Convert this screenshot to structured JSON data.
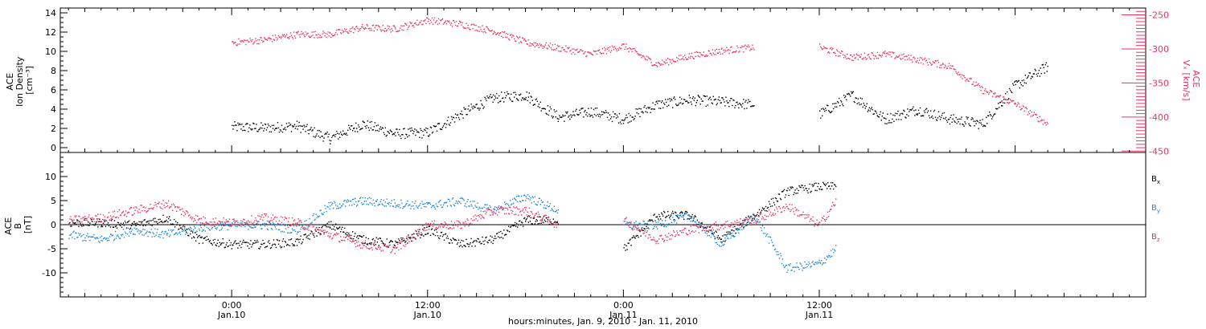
{
  "colors": {
    "black": "#000000",
    "pink": "#e8355f",
    "blue": "#1f86d8",
    "axis": "#000000"
  },
  "chart_data": [
    {
      "type": "scatter",
      "panel": "top",
      "ylabel": "ACE\nIon Density\n[cm⁻³]",
      "ylabel_lines": [
        "ACE",
        "Ion Density",
        "[cm⁻³]"
      ],
      "ylim": [
        -0.5,
        14.5
      ],
      "y_ticks": [
        0,
        2,
        4,
        6,
        8,
        10,
        12,
        14
      ],
      "y_tick_labels": [
        "0",
        "2",
        "4",
        "6",
        "8",
        "10",
        "12",
        "14"
      ],
      "y2label_lines": [
        "ACE",
        "Vₓ [km/s]"
      ],
      "y2lim": [
        -240,
        -452
      ],
      "y2_ticks": [
        -250,
        -300,
        -350,
        -400,
        -450
      ],
      "y2_tick_labels": [
        "-250",
        "-300",
        "-350",
        "-400",
        "-450"
      ],
      "series": [
        {
          "name": "Ion Density",
          "axis": "left",
          "color": "#000000",
          "x": [
            0,
            2,
            4,
            6,
            8,
            10,
            12,
            14,
            16,
            18,
            20,
            22,
            24,
            26,
            28,
            30,
            32,
            34,
            36,
            38,
            40,
            42,
            44,
            46,
            48,
            50
          ],
          "y": [
            2.2,
            2.1,
            2.3,
            1.0,
            2.5,
            1.5,
            1.6,
            3.5,
            5.2,
            5.5,
            3.2,
            3.8,
            3.0,
            4.5,
            5.0,
            4.8,
            4.5,
            null,
            3.5,
            5.5,
            3.0,
            4.0,
            3.0,
            2.5,
            6.5,
            8.5
          ]
        },
        {
          "name": "Vx",
          "axis": "right",
          "color": "#e8355f",
          "x": [
            0,
            2,
            4,
            6,
            8,
            10,
            12,
            14,
            16,
            18,
            20,
            22,
            24,
            26,
            28,
            30,
            32,
            34,
            36,
            38,
            40,
            42,
            44,
            46,
            48,
            50
          ],
          "y": [
            -290,
            -286,
            -278,
            -278,
            -268,
            -270,
            -257,
            -263,
            -273,
            -290,
            -298,
            -307,
            -295,
            -322,
            -310,
            -302,
            -297,
            null,
            -297,
            -312,
            -307,
            -315,
            -325,
            -360,
            -380,
            -410
          ]
        }
      ]
    },
    {
      "type": "scatter",
      "panel": "bottom",
      "ylabel": "ACE\nB\n[nT]",
      "ylabel_lines": [
        "ACE",
        "B",
        "[nT]"
      ],
      "ylim": [
        -15,
        15
      ],
      "y_ticks": [
        -10,
        -5,
        0,
        5,
        10
      ],
      "y_tick_labels": [
        "-10",
        "-5",
        "0",
        "5",
        "10"
      ],
      "zero_line": true,
      "xlabel": "hours:minutes, Jan. 9, 2010 - Jan. 11, 2010",
      "xlim": [
        -10.5,
        56
      ],
      "x_tick_labels": [
        {
          "x": 0,
          "time": "0:00",
          "date": "Jan.10"
        },
        {
          "x": 12,
          "time": "12:00",
          "date": "Jan.10"
        },
        {
          "x": 24,
          "time": "0:00",
          "date": "Jan.11"
        },
        {
          "x": 36,
          "time": "12:00",
          "date": "Jan.11"
        }
      ],
      "series": [
        {
          "name": "Bₓ",
          "color": "#000000",
          "x": [
            -10,
            -8,
            -6,
            -4,
            -2,
            0,
            2,
            4,
            6,
            8,
            10,
            12,
            14,
            16,
            18,
            20,
            22,
            24,
            26,
            28,
            30,
            32,
            34,
            36,
            37
          ],
          "y": [
            0.5,
            0.5,
            0,
            1.5,
            -3,
            -4,
            -4,
            -3.5,
            0,
            -3,
            -4,
            -1,
            -4,
            -3,
            1,
            1,
            null,
            -5,
            2,
            2,
            -3,
            2,
            7,
            8,
            8
          ]
        },
        {
          "name": "Bᵧ",
          "color": "#1f86d8",
          "x": [
            -10,
            -8,
            -6,
            -4,
            -2,
            0,
            2,
            4,
            6,
            8,
            10,
            12,
            14,
            16,
            18,
            20,
            22,
            24,
            26,
            28,
            30,
            32,
            34,
            36,
            37
          ],
          "y": [
            -2,
            -3,
            -1,
            -2,
            -0.5,
            0,
            0,
            -1,
            4,
            5,
            4.5,
            4,
            5,
            3,
            6,
            3,
            null,
            0,
            0,
            2,
            -4,
            2,
            -9,
            -8,
            -5
          ]
        },
        {
          "name": "B_z",
          "color": "#e8355f",
          "x": [
            -10,
            -8,
            -6,
            -4,
            -2,
            0,
            2,
            4,
            6,
            8,
            10,
            12,
            14,
            16,
            18,
            20,
            22,
            24,
            26,
            28,
            30,
            32,
            34,
            36,
            37
          ],
          "y": [
            1,
            1.5,
            3,
            4.5,
            1,
            0.5,
            1.5,
            0.5,
            -2,
            -4,
            -5,
            0,
            0,
            3,
            3,
            0,
            null,
            1,
            -3,
            -1,
            0,
            1,
            4,
            0,
            5
          ]
        }
      ],
      "legend": [
        {
          "label": "B",
          "sub": "x",
          "color": "#000000"
        },
        {
          "label": "B",
          "sub": "y",
          "color": "#1f86d8"
        },
        {
          "label": "B",
          "sub": "z",
          "color": "#e8355f"
        }
      ]
    }
  ]
}
